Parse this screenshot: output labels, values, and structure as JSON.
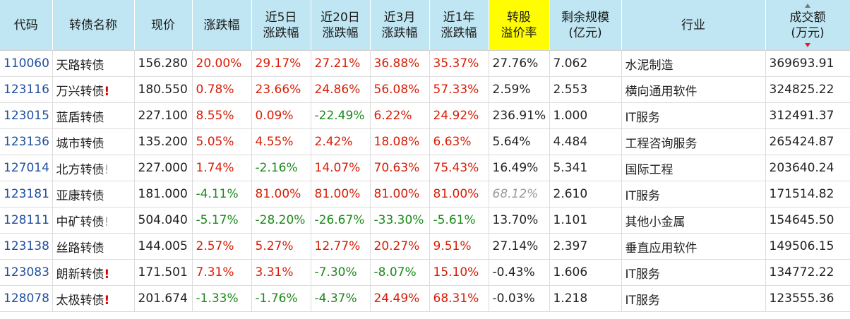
{
  "headers": [
    [
      "代码"
    ],
    [
      "转债名称"
    ],
    [
      "现价"
    ],
    [
      "涨跌幅"
    ],
    [
      "近5日",
      "涨跌幅"
    ],
    [
      "近20日",
      "涨跌幅"
    ],
    [
      "近3月",
      "涨跌幅"
    ],
    [
      "近1年",
      "涨跌幅"
    ],
    [
      "转股",
      "溢价率"
    ],
    [
      "剩余规模",
      "(亿元)"
    ],
    [
      "行业"
    ],
    [
      "成交额",
      "(万元)"
    ]
  ],
  "highlight_header_color": "#fffd00",
  "sorted_column": "成交额",
  "sort_direction": "descending",
  "rows": [
    {
      "code": "110060",
      "name": "天路转债",
      "flag": "",
      "price": "156.280",
      "chg": "20.00%",
      "chg5": "29.17%",
      "chg20": "27.21%",
      "chg3m": "36.88%",
      "chg1y": "35.37%",
      "premium": "27.76%",
      "premium_muted": false,
      "scale": "7.062",
      "industry": "水泥制造",
      "turnover": "369693.91"
    },
    {
      "code": "123116",
      "name": "万兴转债",
      "flag": "!",
      "flag_type": "red",
      "price": "180.550",
      "chg": "0.78%",
      "chg5": "23.66%",
      "chg20": "24.86%",
      "chg3m": "56.08%",
      "chg1y": "57.33%",
      "premium": "2.59%",
      "premium_muted": false,
      "scale": "2.553",
      "industry": "横向通用软件",
      "turnover": "324825.22"
    },
    {
      "code": "123015",
      "name": "蓝盾转债",
      "flag": "",
      "price": "227.100",
      "chg": "8.55%",
      "chg5": "0.09%",
      "chg20": "-22.49%",
      "chg3m": "6.22%",
      "chg1y": "24.92%",
      "premium": "236.91%",
      "premium_muted": false,
      "scale": "1.000",
      "industry": "IT服务",
      "turnover": "312491.37"
    },
    {
      "code": "123136",
      "name": "城市转债",
      "flag": "",
      "price": "135.200",
      "chg": "5.05%",
      "chg5": "4.55%",
      "chg20": "2.42%",
      "chg3m": "18.08%",
      "chg1y": "6.63%",
      "premium": "5.64%",
      "premium_muted": false,
      "scale": "4.484",
      "industry": "工程咨询服务",
      "turnover": "265424.87"
    },
    {
      "code": "127014",
      "name": "北方转债",
      "flag": "!",
      "flag_type": "gray",
      "price": "227.000",
      "chg": "1.74%",
      "chg5": "-2.16%",
      "chg20": "14.07%",
      "chg3m": "70.63%",
      "chg1y": "75.43%",
      "premium": "16.49%",
      "premium_muted": false,
      "scale": "5.341",
      "industry": "国际工程",
      "turnover": "203640.24"
    },
    {
      "code": "123181",
      "name": "亚康转债",
      "flag": "",
      "price": "181.000",
      "chg": "-4.11%",
      "chg5": "81.00%",
      "chg20": "81.00%",
      "chg3m": "81.00%",
      "chg1y": "81.00%",
      "premium": "68.12%",
      "premium_muted": true,
      "scale": "2.610",
      "industry": "IT服务",
      "turnover": "171514.82"
    },
    {
      "code": "128111",
      "name": "中矿转债",
      "flag": "!",
      "flag_type": "gray",
      "price": "504.040",
      "chg": "-5.17%",
      "chg5": "-28.20%",
      "chg20": "-26.67%",
      "chg3m": "-33.30%",
      "chg1y": "-5.61%",
      "premium": "13.70%",
      "premium_muted": false,
      "scale": "1.101",
      "industry": "其他小金属",
      "turnover": "154645.50"
    },
    {
      "code": "123138",
      "name": "丝路转债",
      "flag": "",
      "price": "144.005",
      "chg": "2.57%",
      "chg5": "5.27%",
      "chg20": "12.77%",
      "chg3m": "20.27%",
      "chg1y": "9.51%",
      "premium": "27.14%",
      "premium_muted": false,
      "scale": "2.397",
      "industry": "垂直应用软件",
      "turnover": "149506.15"
    },
    {
      "code": "123083",
      "name": "朗新转债",
      "flag": "!",
      "flag_type": "red",
      "price": "171.501",
      "chg": "7.31%",
      "chg5": "3.31%",
      "chg20": "-7.30%",
      "chg3m": "-8.07%",
      "chg1y": "15.10%",
      "premium": "-0.43%",
      "premium_muted": false,
      "scale": "1.606",
      "industry": "IT服务",
      "turnover": "134772.22"
    },
    {
      "code": "128078",
      "name": "太极转债",
      "flag": "!",
      "flag_type": "red",
      "price": "201.674",
      "chg": "-1.33%",
      "chg5": "-1.76%",
      "chg20": "-4.37%",
      "chg3m": "24.49%",
      "chg1y": "68.31%",
      "premium": "-0.03%",
      "premium_muted": false,
      "scale": "1.218",
      "industry": "IT服务",
      "turnover": "123555.36"
    }
  ]
}
